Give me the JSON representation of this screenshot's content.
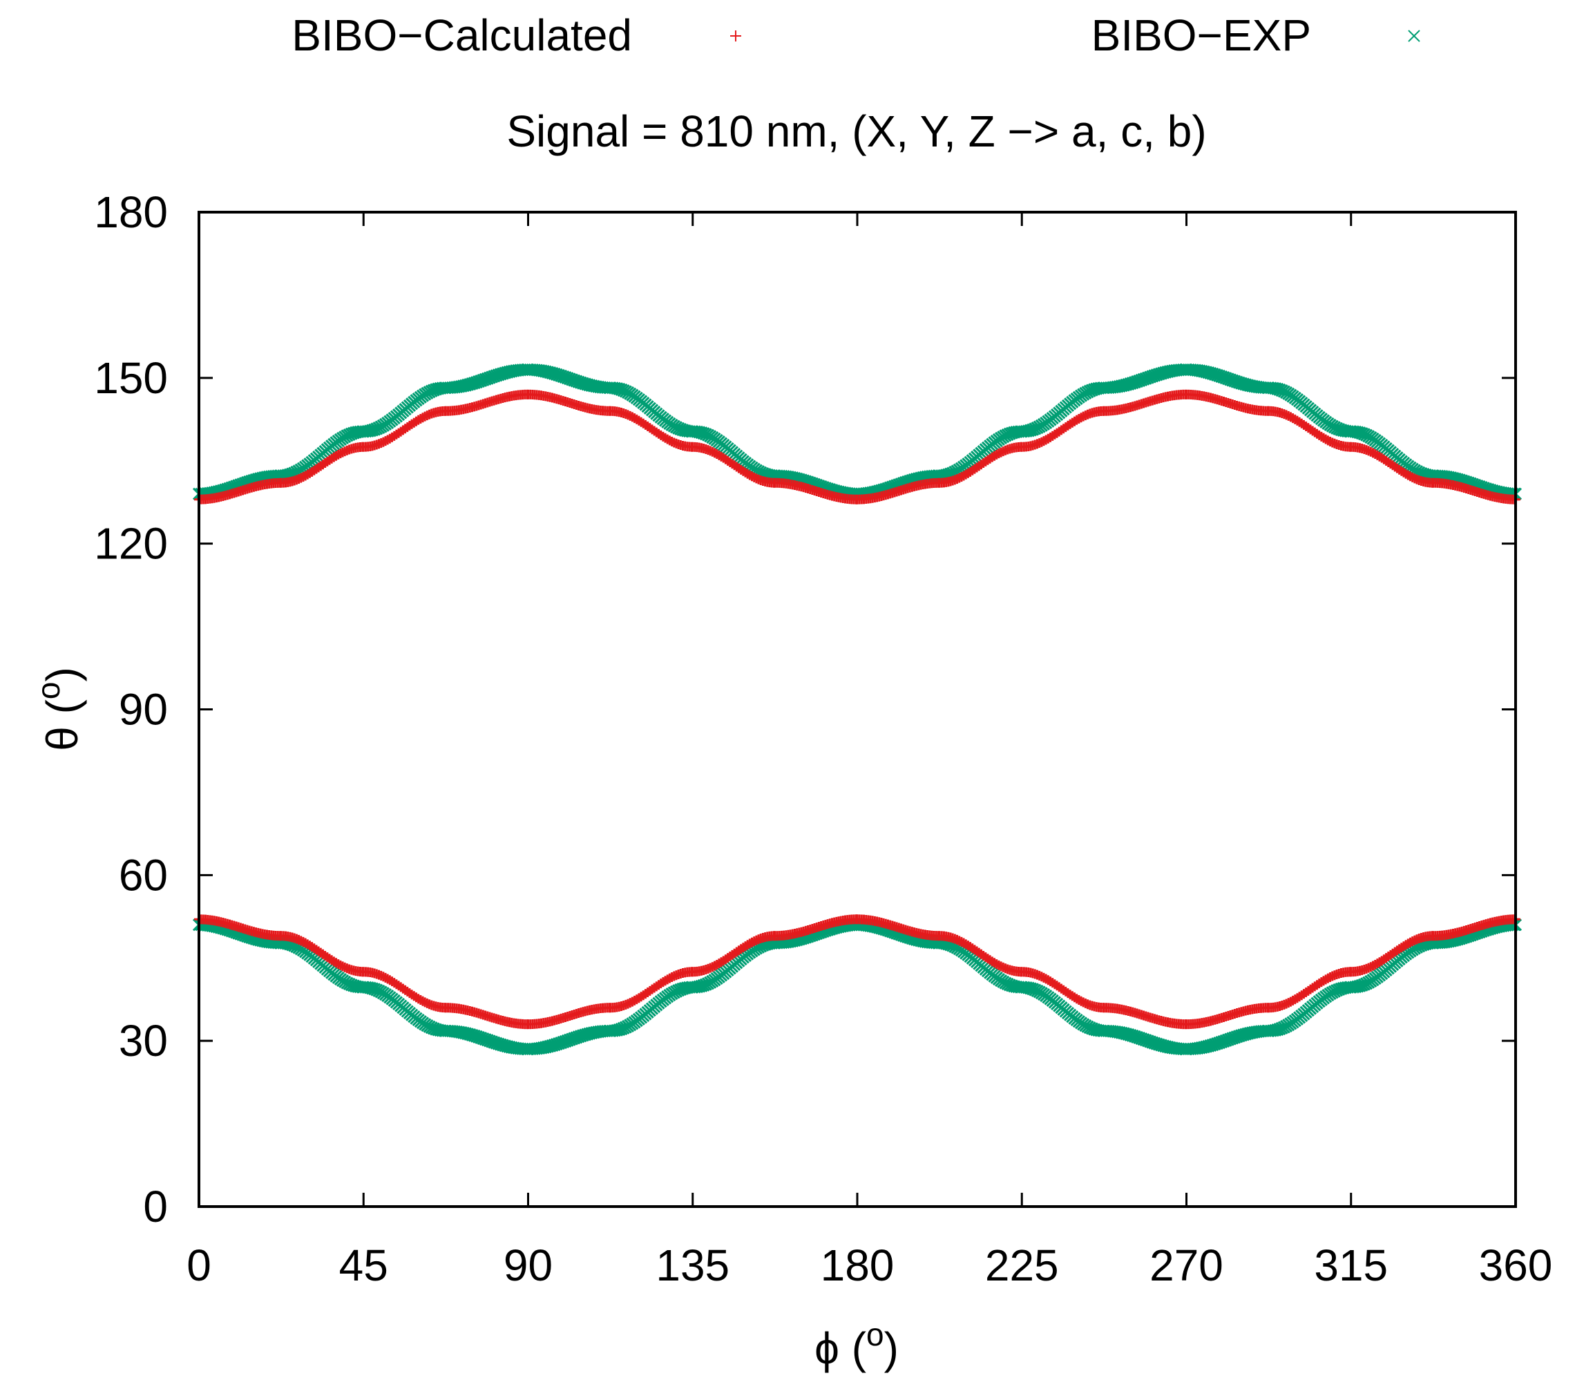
{
  "chart_data": {
    "type": "scatter",
    "title": "Signal = 810 nm, (X, Y, Z −> a, c, b)",
    "xlabel": {
      "symbol": "ϕ",
      "open": " (",
      "sup": "o",
      "close": ")"
    },
    "ylabel": {
      "symbol": "θ",
      "open": " (",
      "sup": "o",
      "close": ")"
    },
    "xlim": [
      0,
      360
    ],
    "ylim": [
      0,
      180
    ],
    "xticks": [
      0,
      45,
      90,
      135,
      180,
      225,
      270,
      315,
      360
    ],
    "yticks": [
      0,
      30,
      60,
      90,
      120,
      150,
      180
    ],
    "grid": false,
    "legend_position": "top, outside, horizontal",
    "series": [
      {
        "name": "BIBO−Calculated",
        "marker": "+",
        "color": "#e41a1c",
        "branches": [
          {
            "x": [
              0,
              22.5,
              45,
              67.5,
              90,
              112.5,
              135,
              157.5,
              180,
              202.5,
              225,
              247.5,
              270,
              292.5,
              315,
              337.5,
              360
            ],
            "y": [
              128,
              131,
              137.5,
              144,
              147,
              144,
              137.5,
              131,
              128,
              131,
              137.5,
              144,
              147,
              144,
              137.5,
              131,
              128
            ]
          },
          {
            "x": [
              0,
              22.5,
              45,
              67.5,
              90,
              112.5,
              135,
              157.5,
              180,
              202.5,
              225,
              247.5,
              270,
              292.5,
              315,
              337.5,
              360
            ],
            "y": [
              52,
              49,
              42.5,
              36,
              33,
              36,
              42.5,
              49,
              52,
              49,
              42.5,
              36,
              33,
              36,
              42.5,
              49,
              52
            ]
          }
        ]
      },
      {
        "name": "BIBO−EXP",
        "marker": "x",
        "color": "#009e73",
        "branches": [
          {
            "x": [
              0,
              22.5,
              45,
              67.5,
              90,
              112.5,
              135,
              157.5,
              180,
              202.5,
              225,
              247.5,
              270,
              292.5,
              315,
              337.5,
              360
            ],
            "y": [
              129,
              132.3,
              140.3,
              148.2,
              151.5,
              148.2,
              140.3,
              132.3,
              129,
              132.3,
              140.3,
              148.2,
              151.5,
              148.2,
              140.3,
              132.3,
              129
            ]
          },
          {
            "x": [
              0,
              22.5,
              45,
              67.5,
              90,
              112.5,
              135,
              157.5,
              180,
              202.5,
              225,
              247.5,
              270,
              292.5,
              315,
              337.5,
              360
            ],
            "y": [
              51,
              47.7,
              39.7,
              31.8,
              28.5,
              31.8,
              39.7,
              47.7,
              51,
              47.7,
              39.7,
              31.8,
              28.5,
              31.8,
              39.7,
              47.7,
              51
            ]
          }
        ]
      }
    ]
  }
}
